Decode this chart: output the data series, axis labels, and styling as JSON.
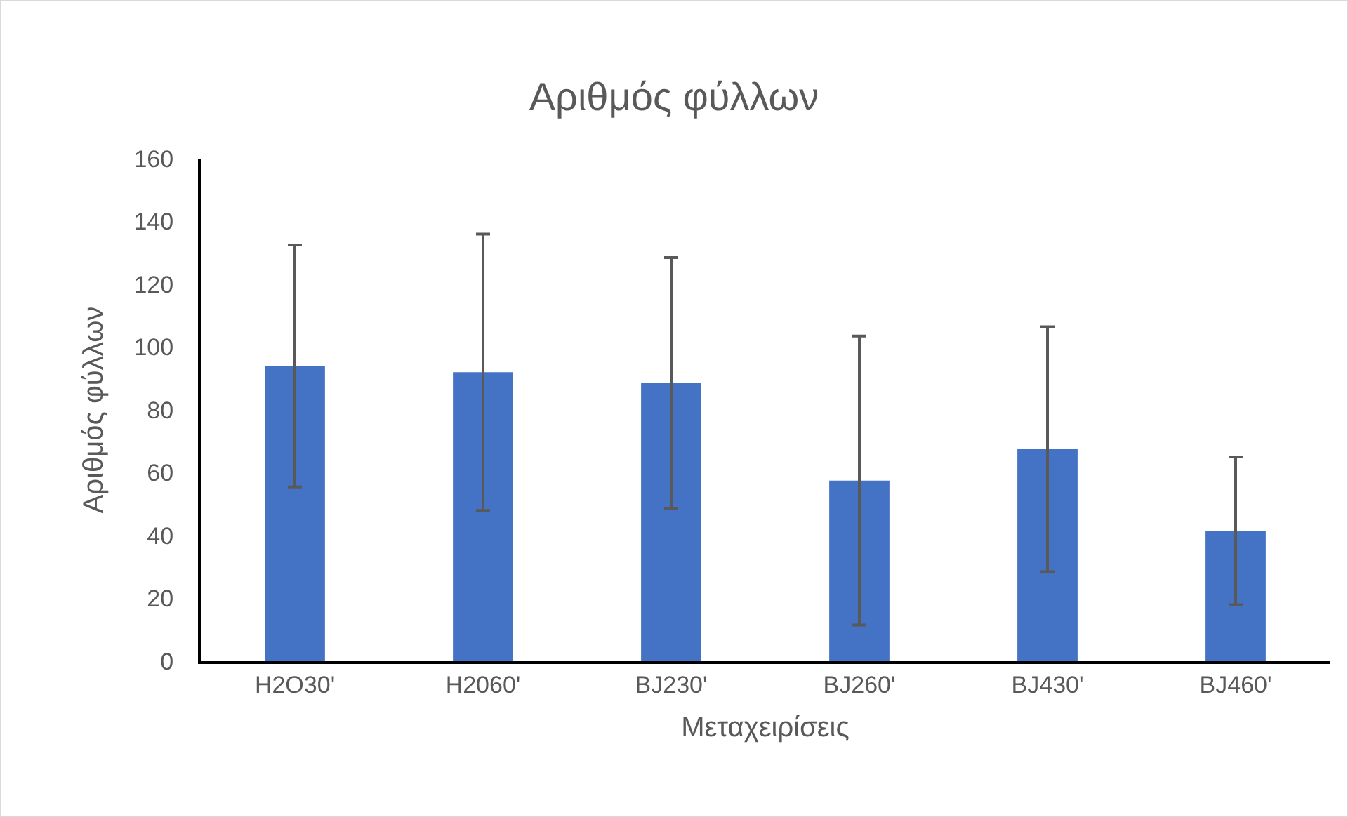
{
  "chart_data": {
    "type": "bar",
    "title": "Αριθμός φύλλων",
    "xlabel": "Μεταχειρίσεις",
    "ylabel": "Αριθμός φύλλων",
    "categories": [
      "H2O30'",
      "H2060'",
      "BJ230'",
      "BJ260'",
      "BJ430'",
      "BJ460'"
    ],
    "values": [
      94,
      92,
      88.5,
      57.5,
      67.5,
      41.5
    ],
    "errors": [
      38.5,
      44,
      40,
      46,
      39,
      23.5
    ],
    "color": "#4472c4",
    "ylim": [
      0,
      160
    ],
    "yticks": [
      0,
      20,
      40,
      60,
      80,
      100,
      120,
      140,
      160
    ],
    "grid": false,
    "legend": false
  }
}
